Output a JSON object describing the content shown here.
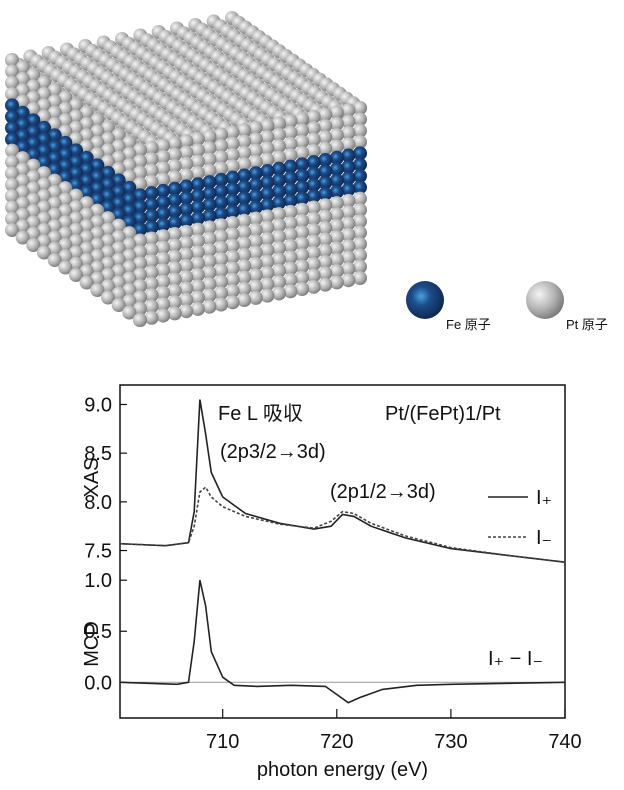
{
  "illustration": {
    "legend": [
      "Fe 原子",
      "Pt 原子"
    ]
  },
  "chart_data": [
    {
      "type": "line",
      "ylabel": "XAS",
      "annotations": [
        "Fe L 吸収",
        "(2p3/2→3d)",
        "Pt/(FePt)1/Pt",
        "(2p1/2→3d)"
      ],
      "x": [
        701,
        705,
        707,
        707.5,
        708,
        708.5,
        709,
        710,
        712,
        715,
        718,
        719.5,
        720.5,
        721.5,
        723,
        726,
        730,
        735,
        740
      ],
      "series": [
        {
          "name": "I₊",
          "color": "#222222",
          "dash": false,
          "values": [
            7.57,
            7.55,
            7.58,
            7.9,
            9.05,
            8.7,
            8.3,
            8.05,
            7.88,
            7.78,
            7.72,
            7.75,
            7.87,
            7.85,
            7.75,
            7.63,
            7.52,
            7.45,
            7.38
          ]
        },
        {
          "name": "I₋",
          "color": "#444444",
          "dash": true,
          "values": [
            7.57,
            7.55,
            7.58,
            7.75,
            8.1,
            8.15,
            8.05,
            7.95,
            7.85,
            7.77,
            7.73,
            7.8,
            7.9,
            7.88,
            7.78,
            7.65,
            7.53,
            7.45,
            7.38
          ]
        }
      ],
      "xlim": [
        701,
        740
      ],
      "ylim": [
        7.3,
        9.2
      ],
      "yticks": [
        7.5,
        {
          "value": 8.0,
          "label": "8.0"
        },
        8.5,
        {
          "value": 9.0,
          "label": "9.0"
        }
      ]
    },
    {
      "type": "line",
      "ylabel": "MCD",
      "xlabel": "photon energy (eV)",
      "annotations": [
        "I₊ − I₋"
      ],
      "x": [
        701,
        706,
        707,
        707.5,
        708,
        708.5,
        709,
        710,
        711,
        713,
        716,
        719,
        720,
        721,
        722,
        724,
        727,
        730,
        735,
        740
      ],
      "series": [
        {
          "color": "#222222",
          "dash": false,
          "values": [
            0,
            -0.02,
            0,
            0.4,
            1.0,
            0.75,
            0.3,
            0.05,
            -0.03,
            -0.04,
            -0.03,
            -0.04,
            -0.12,
            -0.2,
            -0.15,
            -0.07,
            -0.03,
            -0.02,
            -0.01,
            0
          ]
        }
      ],
      "xlim": [
        701,
        740
      ],
      "ylim": [
        -0.35,
        1.1
      ],
      "xticks": [
        710,
        720,
        730,
        740
      ],
      "yticks": [
        {
          "value": 0.0,
          "label": "0.0"
        },
        0.5,
        {
          "value": 1.0,
          "label": "1.0"
        }
      ]
    }
  ]
}
